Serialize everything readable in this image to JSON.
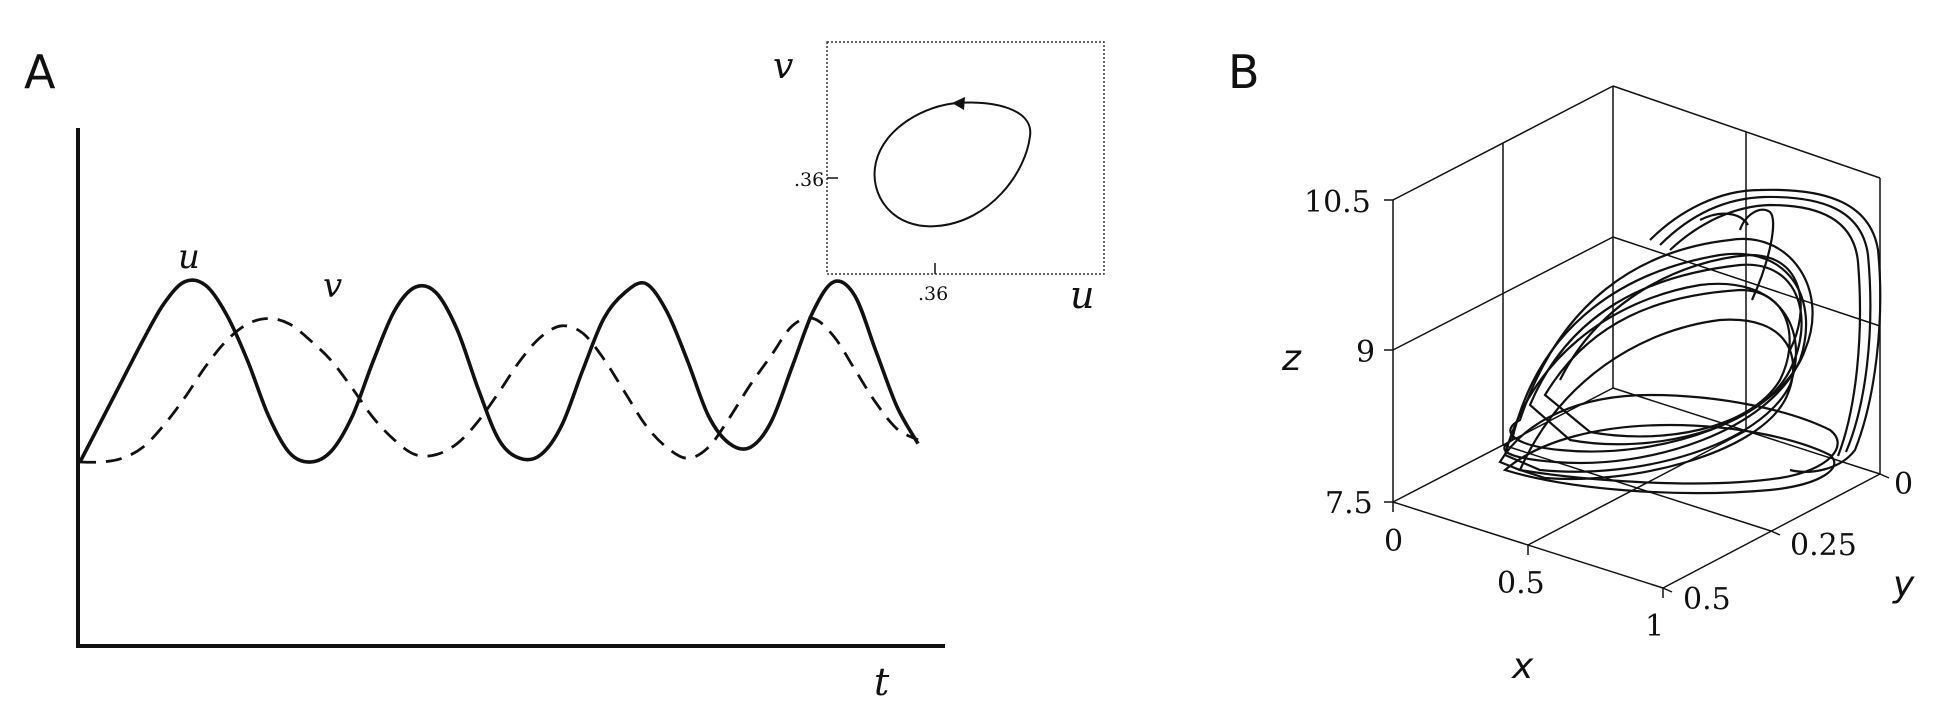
{
  "chart_data": [
    {
      "panel": "A",
      "type": "line",
      "xlabel": "t",
      "ylabel": "",
      "grid": false,
      "x": [
        0,
        0.5,
        1,
        1.5,
        2,
        2.5,
        3,
        3.5,
        4,
        4.5,
        5,
        5.5,
        6,
        6.5,
        7,
        7.5,
        8,
        8.5,
        9,
        9.5,
        10,
        10.5,
        11,
        11.5,
        12,
        12.5,
        13,
        13.5,
        14,
        14.5,
        15,
        15.5,
        16,
        16.5,
        17,
        17.5,
        18,
        18.5,
        19,
        19.5,
        20
      ],
      "series": [
        {
          "name": "u",
          "style": "solid",
          "values": [
            0.0,
            0.22,
            0.44,
            0.66,
            0.86,
            0.98,
            0.96,
            0.8,
            0.55,
            0.25,
            0.05,
            0.0,
            0.06,
            0.25,
            0.55,
            0.82,
            0.95,
            0.92,
            0.72,
            0.4,
            0.12,
            0.02,
            0.04,
            0.2,
            0.5,
            0.78,
            0.92,
            0.97,
            0.82,
            0.55,
            0.25,
            0.1,
            0.08,
            0.22,
            0.52,
            0.82,
            0.98,
            0.9,
            0.6,
            0.3,
            0.1
          ]
        },
        {
          "name": "v",
          "style": "dashed",
          "values": [
            0.0,
            0.0,
            0.02,
            0.08,
            0.2,
            0.35,
            0.52,
            0.66,
            0.75,
            0.78,
            0.75,
            0.66,
            0.55,
            0.4,
            0.24,
            0.12,
            0.04,
            0.04,
            0.1,
            0.22,
            0.38,
            0.55,
            0.68,
            0.74,
            0.7,
            0.56,
            0.38,
            0.2,
            0.08,
            0.02,
            0.08,
            0.24,
            0.42,
            0.58,
            0.74,
            0.78,
            0.68,
            0.5,
            0.32,
            0.18,
            0.12
          ]
        }
      ],
      "labels": {
        "u": "u",
        "v": "v"
      },
      "inset": {
        "type": "line",
        "xlabel": "u",
        "ylabel": "v",
        "x_tick": ".36",
        "y_tick": ".36",
        "description": "closed orbit (limit cycle) traversed with arrow"
      }
    },
    {
      "panel": "B",
      "type": "line",
      "projection": "3d",
      "xlabel": "x",
      "ylabel": "y",
      "zlabel": "z",
      "x_ticks": [
        "0",
        "0.5",
        "1"
      ],
      "y_ticks": [
        "0",
        "0.25",
        "0.5"
      ],
      "z_ticks": [
        "10.5",
        "9",
        "7.5"
      ],
      "xlim": [
        0,
        1
      ],
      "ylim": [
        0,
        0.5
      ],
      "zlim": [
        7.5,
        10.5
      ],
      "grid": true
    }
  ],
  "panel_letters": {
    "a": "A",
    "b": "B"
  }
}
